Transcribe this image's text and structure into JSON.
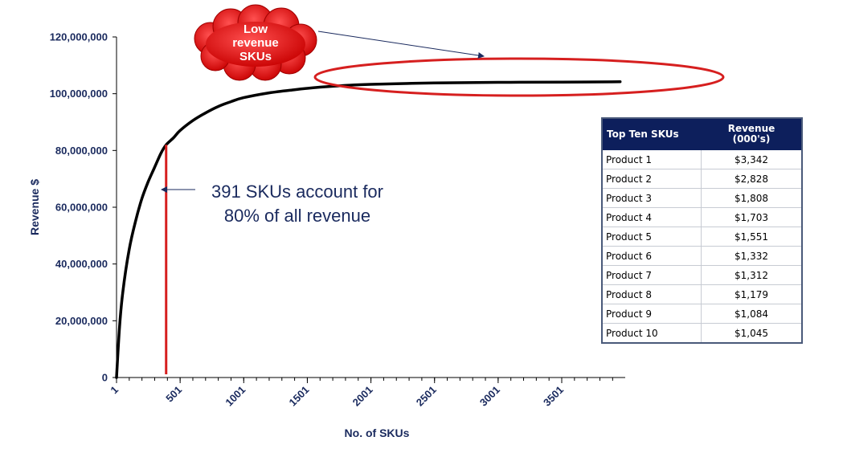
{
  "chart_data": {
    "type": "line",
    "title": "",
    "xlabel": "No. of SKUs",
    "ylabel": "Revenue $",
    "xlim": [
      1,
      4000
    ],
    "ylim": [
      0,
      120000000
    ],
    "x_ticks": [
      "1",
      "501",
      "1001",
      "1501",
      "2001",
      "2501",
      "3001",
      "3501"
    ],
    "y_ticks": [
      "0",
      "20,000,000",
      "40,000,000",
      "60,000,000",
      "80,000,000",
      "100,000,000",
      "120,000,000"
    ],
    "series": [
      {
        "x": [
          1,
          25,
          50,
          100,
          150,
          200,
          250,
          300,
          350,
          391,
          450,
          500,
          600,
          700,
          800,
          900,
          1000,
          1200,
          1400,
          1600,
          1800,
          2000,
          2500,
          3000,
          3500,
          3960
        ],
        "values": [
          0,
          18000000,
          30000000,
          45000000,
          55000000,
          63000000,
          69000000,
          74000000,
          79000000,
          82000000,
          84500000,
          87000000,
          90500000,
          93200000,
          95500000,
          97200000,
          98600000,
          100300000,
          101400000,
          102300000,
          102900000,
          103300000,
          103800000,
          104000000,
          104100000,
          104200000
        ]
      }
    ],
    "grid": false,
    "legend": "none"
  },
  "annotations": {
    "cloud_text": [
      "Low",
      "revenue",
      "SKUs"
    ],
    "note_line1": "391 SKUs account for",
    "note_line2": "80% of all revenue",
    "marker_x": 391
  },
  "table": {
    "header_col1": "Top Ten SKUs",
    "header_col2_line1": "Revenue",
    "header_col2_line2": "(000's)",
    "rows": [
      {
        "name": "Product 1",
        "value": "$3,342"
      },
      {
        "name": "Product 2",
        "value": "$2,828"
      },
      {
        "name": "Product 3",
        "value": "$1,808"
      },
      {
        "name": "Product 4",
        "value": "$1,703"
      },
      {
        "name": "Product 5",
        "value": "$1,551"
      },
      {
        "name": "Product 6",
        "value": "$1,332"
      },
      {
        "name": "Product 7",
        "value": "$1,312"
      },
      {
        "name": "Product 8",
        "value": "$1,179"
      },
      {
        "name": "Product 9",
        "value": "$1,084"
      },
      {
        "name": "Product 10",
        "value": "$1,045"
      }
    ]
  },
  "colors": {
    "curve": "#000000",
    "axis_text": "#1a2a5e",
    "highlight_red": "#d61f1f",
    "table_header": "#0d1f5c"
  }
}
